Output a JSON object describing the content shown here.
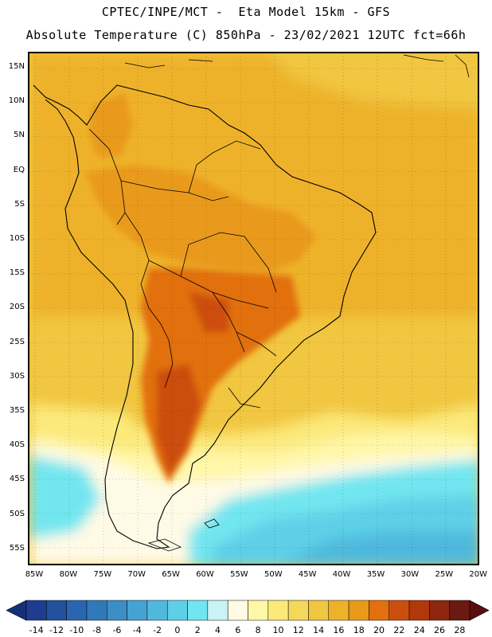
{
  "header": {
    "title_line1": "CPTEC/INPE/MCT -  Eta Model 15km - GFS",
    "title_line2": "Absolute Temperature (C) 850hPa - 23/02/2021 12UTC fct=66h"
  },
  "axes": {
    "lat_labels": [
      "15N",
      "10N",
      "5N",
      "EQ",
      "5S",
      "10S",
      "15S",
      "20S",
      "25S",
      "30S",
      "35S",
      "40S",
      "45S",
      "50S",
      "55S"
    ],
    "lon_labels": [
      "85W",
      "80W",
      "75W",
      "70W",
      "65W",
      "60W",
      "55W",
      "50W",
      "45W",
      "40W",
      "35W",
      "30W",
      "25W",
      "20W"
    ]
  },
  "colorbar": {
    "labels": [
      "-14",
      "-12",
      "-10",
      "-8",
      "-6",
      "-4",
      "-2",
      "0",
      "2",
      "4",
      "6",
      "8",
      "10",
      "12",
      "14",
      "16",
      "18",
      "20",
      "22",
      "24",
      "26",
      "28"
    ],
    "colors": [
      "#1e3d8f",
      "#23519e",
      "#2a66ae",
      "#3079b9",
      "#3b8fc6",
      "#44a3d2",
      "#4fb9dd",
      "#5dd0e8",
      "#72e6f0",
      "#c9f3f6",
      "#fffae6",
      "#fff7a8",
      "#fbe97a",
      "#f5d85a",
      "#f1c640",
      "#eeb22a",
      "#e99a1a",
      "#e2700e",
      "#cc4e0c",
      "#b1380b",
      "#8f2710",
      "#6a1a10"
    ],
    "arrow_left_color": "#15307a",
    "arrow_right_color": "#5a0d10"
  }
}
